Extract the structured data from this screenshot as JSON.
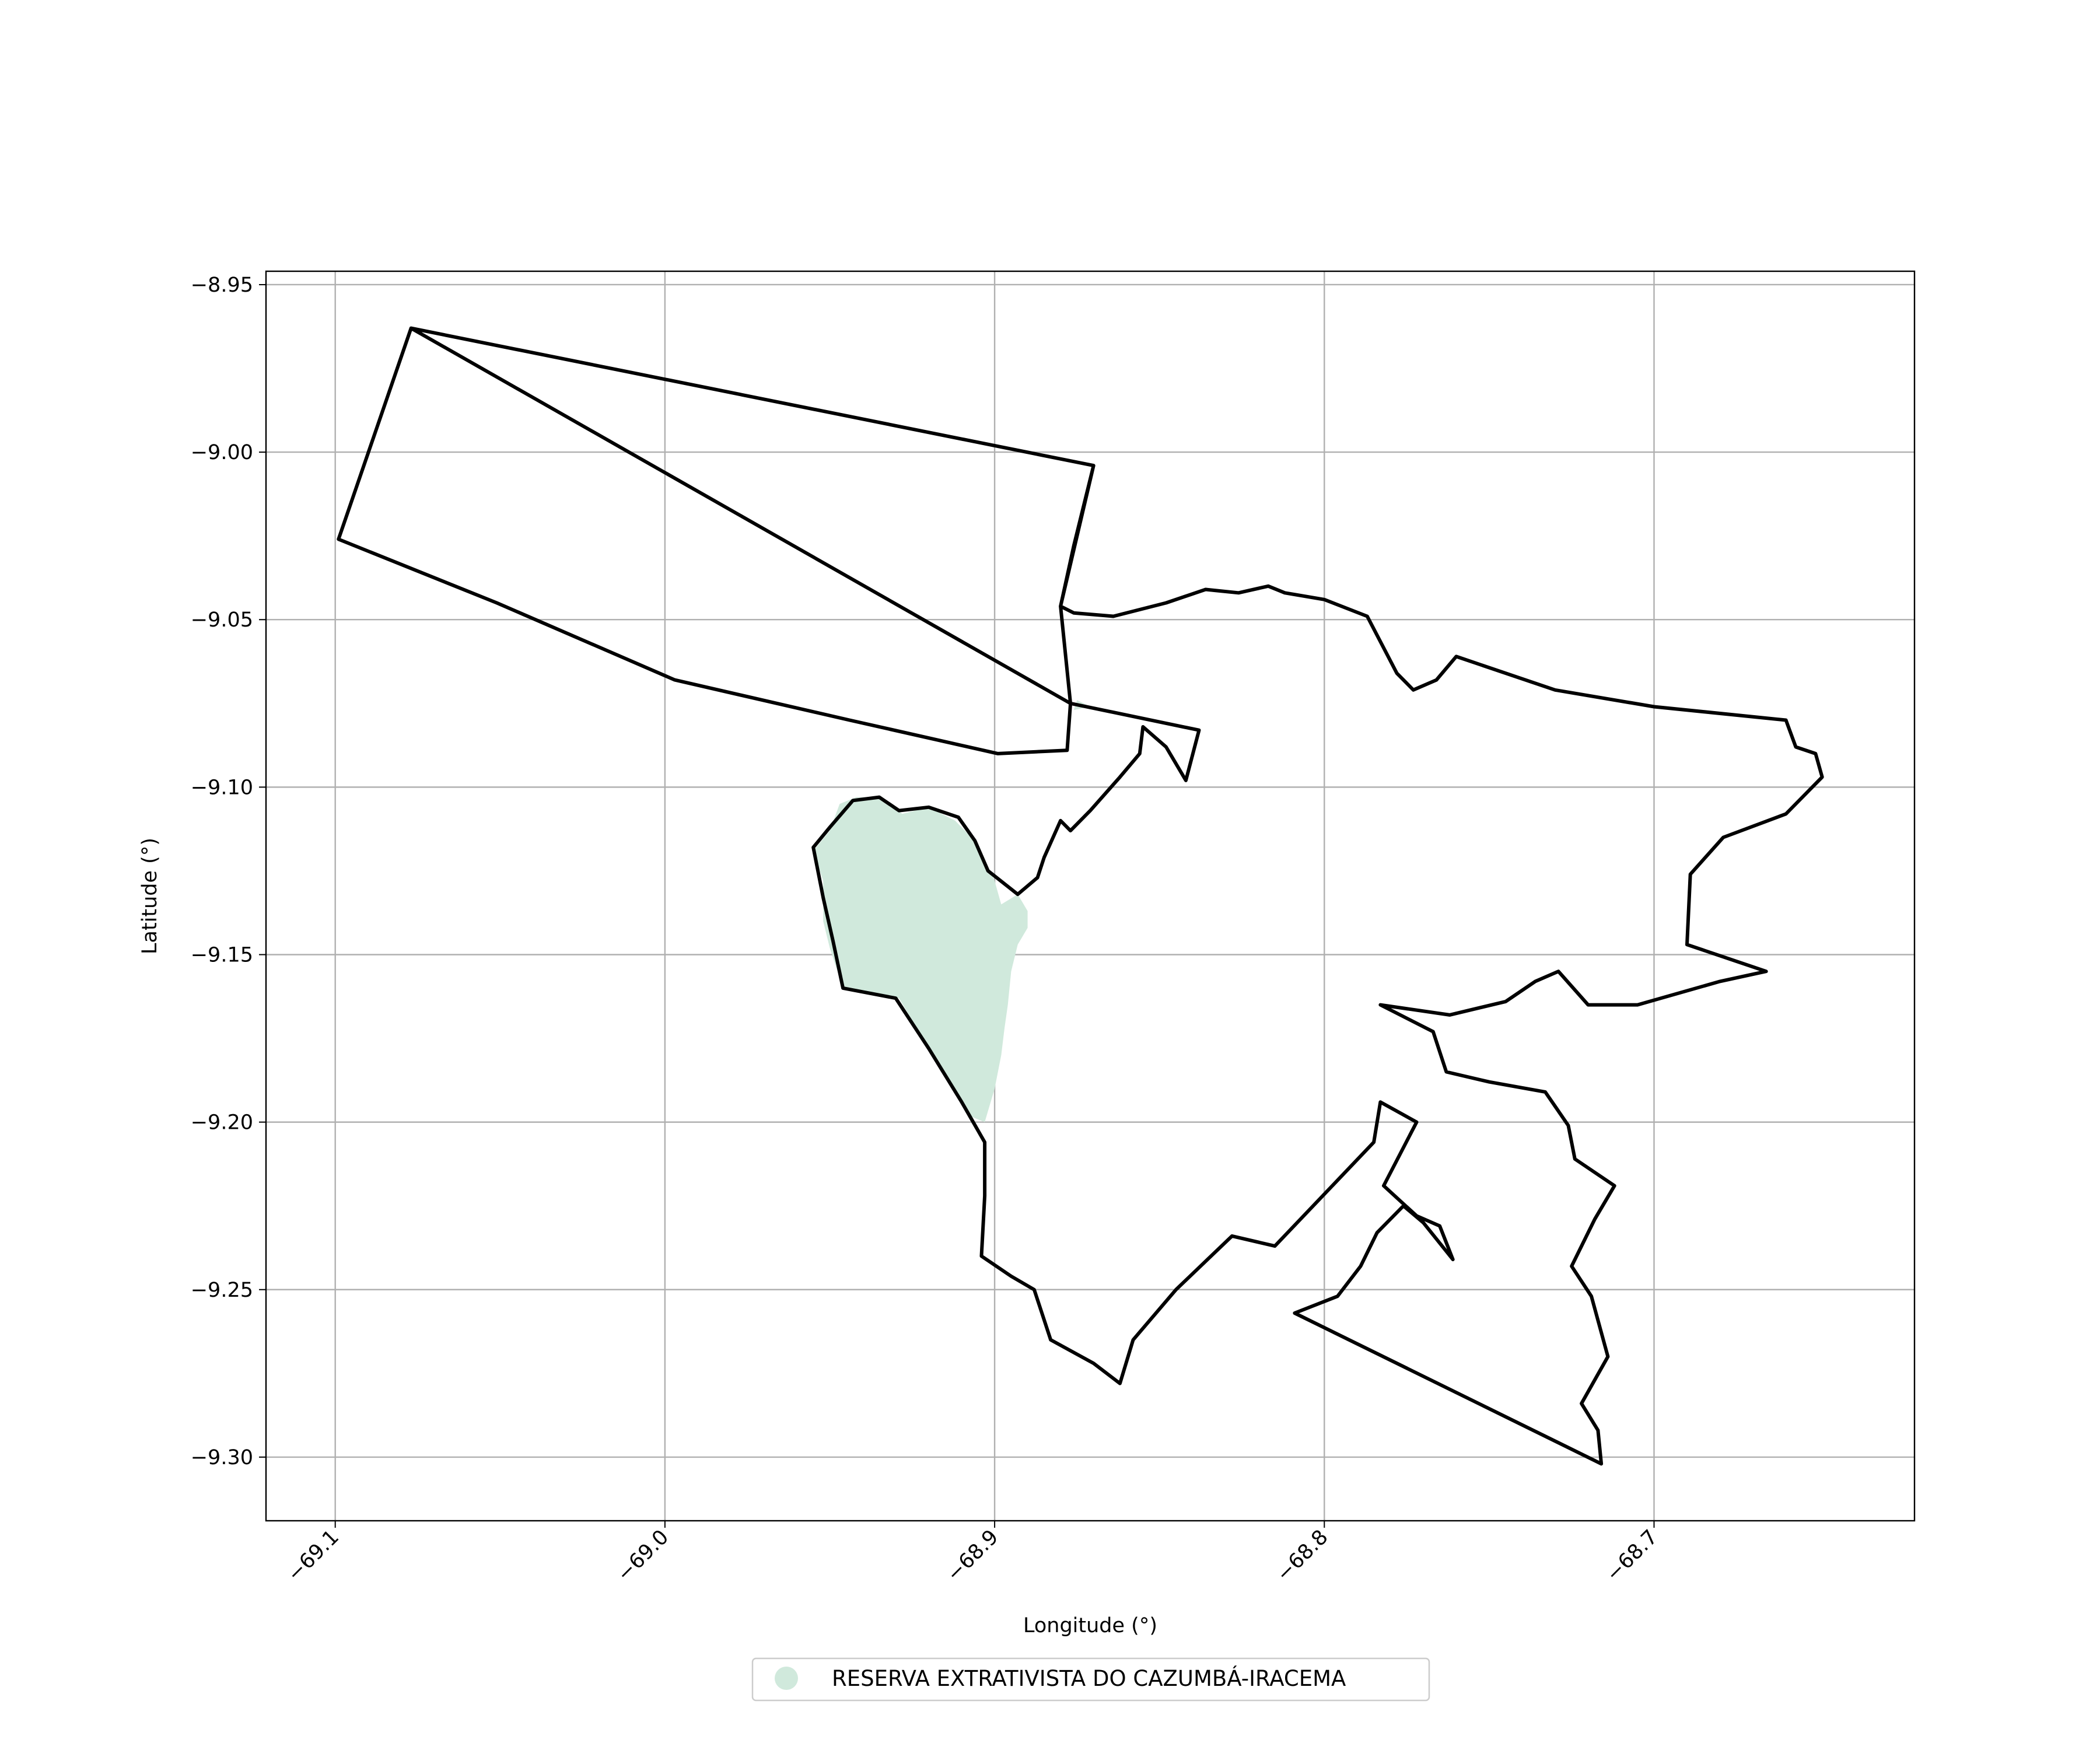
{
  "chart_data": {
    "type": "map",
    "xlabel": "Longitude (°)",
    "ylabel": "Latitude (°)",
    "xlim": [
      -69.121,
      -68.621
    ],
    "ylim": [
      -9.319,
      -8.946
    ],
    "x_ticks": [
      -69.1,
      -69.0,
      -68.9,
      -68.8,
      -68.7
    ],
    "x_tick_labels": [
      "−69.1",
      "−69.0",
      "−68.9",
      "−68.8",
      "−68.7"
    ],
    "y_ticks": [
      -8.95,
      -9.0,
      -9.05,
      -9.1,
      -9.15,
      -9.2,
      -9.25,
      -9.3
    ],
    "y_tick_labels": [
      "−8.95",
      "−9.00",
      "−9.05",
      "−9.10",
      "−9.15",
      "−9.20",
      "−9.25",
      "−9.30"
    ],
    "grid": true,
    "legend_position": "bottom-center",
    "legend": [
      {
        "label": "RESERVA EXTRATIVISTA DO CAZUMBÁ-IRACEMA",
        "color": "#d0e9dc",
        "marker": "circle"
      }
    ],
    "reserve_polygon": [
      [
        -68.947,
        -9.105
      ],
      [
        -68.942,
        -9.103
      ],
      [
        -68.935,
        -9.103
      ],
      [
        -68.928,
        -9.108
      ],
      [
        -68.92,
        -9.106
      ],
      [
        -68.912,
        -9.11
      ],
      [
        -68.905,
        -9.117
      ],
      [
        -68.9,
        -9.128
      ],
      [
        -68.898,
        -9.135
      ],
      [
        -68.893,
        -9.132
      ],
      [
        -68.89,
        -9.137
      ],
      [
        -68.89,
        -9.142
      ],
      [
        -68.893,
        -9.147
      ],
      [
        -68.895,
        -9.155
      ],
      [
        -68.896,
        -9.165
      ],
      [
        -68.897,
        -9.172
      ],
      [
        -68.898,
        -9.18
      ],
      [
        -68.9,
        -9.19
      ],
      [
        -68.903,
        -9.2
      ],
      [
        -68.908,
        -9.198
      ],
      [
        -68.913,
        -9.19
      ],
      [
        -68.92,
        -9.178
      ],
      [
        -68.929,
        -9.163
      ],
      [
        -68.946,
        -9.16
      ],
      [
        -68.95,
        -9.148
      ],
      [
        -68.952,
        -9.14
      ],
      [
        -68.952,
        -9.128
      ],
      [
        -68.955,
        -9.119
      ],
      [
        -68.95,
        -9.113
      ],
      [
        -68.947,
        -9.105
      ]
    ],
    "reserve_spur_polygon": [
      [
        -68.875,
        -9.074
      ],
      [
        -68.871,
        -9.076
      ],
      [
        -68.876,
        -9.077
      ],
      [
        -68.875,
        -9.074
      ]
    ],
    "boundary_west_polygon": [
      [
        -69.077,
        -8.963
      ],
      [
        -68.87,
        -9.004
      ],
      [
        -68.876,
        -9.028
      ],
      [
        -68.88,
        -9.046
      ],
      [
        -68.877,
        -9.075
      ],
      [
        -68.838,
        -9.083
      ],
      [
        -68.842,
        -9.098
      ],
      [
        -68.848,
        -9.088
      ],
      [
        -68.855,
        -9.082
      ],
      [
        -68.856,
        -9.09
      ],
      [
        -68.862,
        -9.097
      ],
      [
        -68.871,
        -9.107
      ],
      [
        -68.877,
        -9.113
      ],
      [
        -68.88,
        -9.11
      ],
      [
        -68.885,
        -9.121
      ],
      [
        -68.887,
        -9.127
      ],
      [
        -68.893,
        -9.132
      ],
      [
        -68.902,
        -9.125
      ],
      [
        -68.906,
        -9.116
      ],
      [
        -68.911,
        -9.109
      ],
      [
        -68.92,
        -9.106
      ],
      [
        -68.929,
        -9.107
      ],
      [
        -68.935,
        -9.103
      ],
      [
        -68.943,
        -9.104
      ],
      [
        -68.95,
        -9.112
      ],
      [
        -68.955,
        -9.118
      ],
      [
        -68.952,
        -9.133
      ],
      [
        -68.949,
        -9.146
      ],
      [
        -68.946,
        -9.16
      ],
      [
        -68.93,
        -9.163
      ],
      [
        -68.92,
        -9.178
      ],
      [
        -68.91,
        -9.194
      ],
      [
        -68.903,
        -9.206
      ],
      [
        -68.903,
        -9.222
      ],
      [
        -68.904,
        -9.24
      ],
      [
        -68.895,
        -9.246
      ],
      [
        -68.888,
        -9.25
      ],
      [
        -68.883,
        -9.265
      ],
      [
        -68.87,
        -9.272
      ],
      [
        -68.862,
        -9.278
      ],
      [
        -68.858,
        -9.265
      ],
      [
        -68.845,
        -9.25
      ],
      [
        -68.828,
        -9.234
      ],
      [
        -68.815,
        -9.237
      ],
      [
        -68.785,
        -9.206
      ],
      [
        -68.783,
        -9.194
      ],
      [
        -68.772,
        -9.2
      ],
      [
        -68.782,
        -9.219
      ],
      [
        -68.772,
        -9.228
      ],
      [
        -68.765,
        -9.231
      ],
      [
        -68.761,
        -9.241
      ],
      [
        -68.77,
        -9.23
      ],
      [
        -68.776,
        -9.225
      ],
      [
        -68.784,
        -9.233
      ],
      [
        -68.789,
        -9.243
      ],
      [
        -68.796,
        -9.252
      ],
      [
        -68.809,
        -9.257
      ],
      [
        -68.716,
        -9.302
      ],
      [
        -68.717,
        -9.292
      ],
      [
        -68.722,
        -9.284
      ],
      [
        -68.714,
        -9.27
      ],
      [
        -68.719,
        -9.252
      ],
      [
        -68.725,
        -9.243
      ],
      [
        -68.718,
        -9.229
      ],
      [
        -68.712,
        -9.219
      ],
      [
        -68.724,
        -9.211
      ],
      [
        -68.726,
        -9.201
      ],
      [
        -68.733,
        -9.191
      ],
      [
        -68.75,
        -9.188
      ],
      [
        -68.763,
        -9.185
      ],
      [
        -68.767,
        -9.173
      ],
      [
        -68.783,
        -9.165
      ],
      [
        -68.762,
        -9.168
      ],
      [
        -68.745,
        -9.164
      ],
      [
        -68.736,
        -9.158
      ],
      [
        -68.729,
        -9.155
      ],
      [
        -68.72,
        -9.165
      ],
      [
        -68.705,
        -9.165
      ],
      [
        -68.68,
        -9.158
      ],
      [
        -68.666,
        -9.155
      ],
      [
        -68.69,
        -9.147
      ],
      [
        -68.689,
        -9.126
      ],
      [
        -68.679,
        -9.115
      ],
      [
        -68.66,
        -9.108
      ],
      [
        -68.649,
        -9.097
      ],
      [
        -68.651,
        -9.09
      ],
      [
        -68.657,
        -9.088
      ],
      [
        -68.66,
        -9.08
      ],
      [
        -68.7,
        -9.076
      ],
      [
        -68.73,
        -9.071
      ],
      [
        -68.76,
        -9.061
      ],
      [
        -68.766,
        -9.068
      ],
      [
        -68.773,
        -9.071
      ],
      [
        -68.778,
        -9.066
      ],
      [
        -68.787,
        -9.049
      ],
      [
        -68.8,
        -9.044
      ],
      [
        -68.812,
        -9.042
      ],
      [
        -68.817,
        -9.04
      ],
      [
        -68.826,
        -9.042
      ],
      [
        -68.836,
        -9.041
      ],
      [
        -68.848,
        -9.045
      ],
      [
        -68.864,
        -9.049
      ],
      [
        -68.876,
        -9.048
      ],
      [
        -68.88,
        -9.046
      ],
      [
        -68.87,
        -9.004
      ],
      [
        -69.077,
        -8.963
      ],
      [
        -69.099,
        -9.026
      ],
      [
        -69.051,
        -9.045
      ],
      [
        -68.997,
        -9.068
      ],
      [
        -68.944,
        -9.08
      ],
      [
        -68.899,
        -9.09
      ],
      [
        -68.878,
        -9.089
      ],
      [
        -68.877,
        -9.075
      ]
    ]
  }
}
